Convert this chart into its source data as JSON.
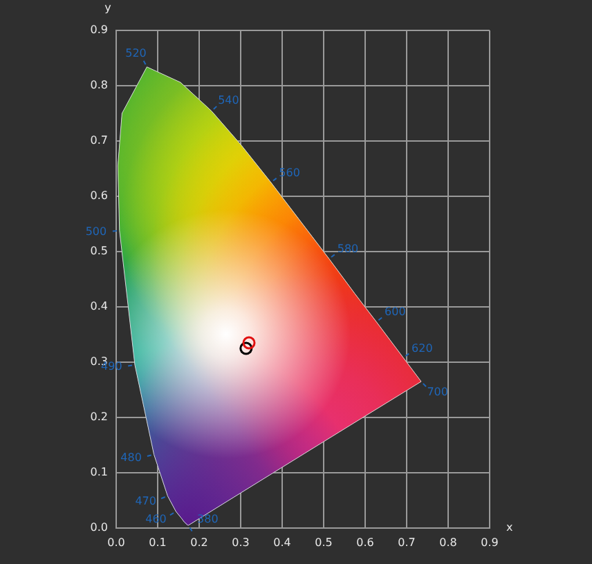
{
  "chart_data": {
    "type": "area",
    "xlabel": "x",
    "ylabel": "y",
    "xlim": [
      0,
      0.9
    ],
    "ylim": [
      0,
      0.9
    ],
    "xticks": [
      {
        "value": 0,
        "label": "0.0"
      },
      0.1,
      0.2,
      0.3,
      0.4,
      0.5,
      0.6,
      0.7,
      0.8,
      0.9
    ],
    "yticks": [
      {
        "value": 0,
        "label": "0.0"
      },
      0.1,
      0.2,
      0.3,
      0.4,
      0.5,
      0.6,
      0.7,
      0.8,
      0.9
    ],
    "grid": true,
    "legend": false,
    "marker": "none",
    "series": [
      {
        "color": "#d8d8d8",
        "x": [
          0.174,
          0.173,
          0.171,
          0.164,
          0.157,
          0.144,
          0.124,
          0.091,
          0.045,
          0.008,
          0.004,
          0.014,
          0.074,
          0.155,
          0.23,
          0.302,
          0.373,
          0.444,
          0.513,
          0.575,
          0.627,
          0.692,
          0.735,
          0.454,
          0.174
        ],
        "values": [
          0.005,
          0.005,
          0.005,
          0.011,
          0.018,
          0.03,
          0.058,
          0.133,
          0.295,
          0.538,
          0.655,
          0.75,
          0.834,
          0.806,
          0.754,
          0.692,
          0.625,
          0.555,
          0.487,
          0.424,
          0.373,
          0.308,
          0.265,
          0.135,
          0.005
        ],
        "colors": [
          "#5a1a8c",
          "#5a1a8c",
          "#4b1e90",
          "#3a2a95",
          "#2a3a9a",
          "#1f4fa0",
          "#1565b0",
          "#0aa0dc",
          "#00a89a",
          "#10a060",
          "#18a448",
          "#1ea83a",
          "#22ac38",
          "#2aaf36",
          "#40b032",
          "#70b82a",
          "#b8d010",
          "#f0e800",
          "#ffb000",
          "#ff8000",
          "#f85010",
          "#ee2a18",
          "#e82a20",
          "#e83080",
          "#5a1a8c"
        ]
      },
      {
        "type": "scatter",
        "marker": "circle",
        "color": "#e01010",
        "x": [
          0.32
        ],
        "values": [
          0.335
        ]
      },
      {
        "type": "scatter",
        "marker": "circle",
        "color": "#000000",
        "x": [
          0.313
        ],
        "values": [
          0.325
        ]
      }
    ],
    "annotations": [
      {
        "text": "380",
        "x": 0.174,
        "y": 0.005
      },
      {
        "text": "460",
        "x": 0.144,
        "y": 0.03
      },
      {
        "text": "470",
        "x": 0.124,
        "y": 0.058
      },
      {
        "text": "480",
        "x": 0.091,
        "y": 0.133
      },
      {
        "text": "490",
        "x": 0.045,
        "y": 0.295
      },
      {
        "text": "500",
        "x": 0.008,
        "y": 0.538
      },
      {
        "text": "520",
        "x": 0.074,
        "y": 0.834
      },
      {
        "text": "540",
        "x": 0.23,
        "y": 0.754
      },
      {
        "text": "560",
        "x": 0.373,
        "y": 0.625
      },
      {
        "text": "580",
        "x": 0.513,
        "y": 0.487
      },
      {
        "text": "600",
        "x": 0.627,
        "y": 0.373
      },
      {
        "text": "620",
        "x": 0.692,
        "y": 0.308
      },
      {
        "text": "700",
        "x": 0.735,
        "y": 0.265
      }
    ]
  }
}
